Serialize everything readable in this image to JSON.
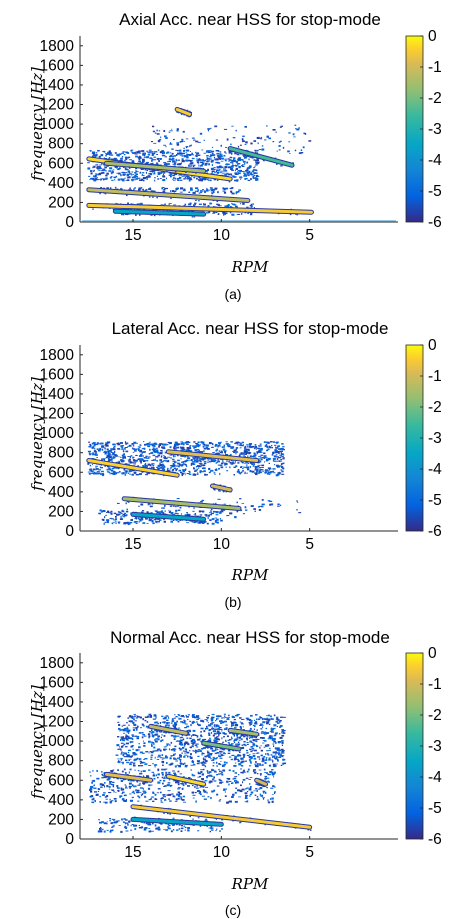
{
  "figure": {
    "panels": [
      {
        "caption": "(a)",
        "chart_data": {
          "type": "heatmap",
          "title": "Axial Acc. near HSS for stop-mode",
          "xlabel": "RPM",
          "ylabel": "frequency [Hz]",
          "x_reversed": true,
          "xlim": [
            18,
            0
          ],
          "ylim": [
            0,
            1900
          ],
          "xticks": [
            15,
            10,
            5
          ],
          "yticks": [
            0,
            200,
            400,
            600,
            800,
            1000,
            1200,
            1400,
            1600,
            1800
          ],
          "colorbar": {
            "ticks": [
              0,
              -1,
              -2,
              -3,
              -4,
              -5,
              -6
            ],
            "range": [
              -6,
              0
            ],
            "colormap": "parula"
          },
          "background_hz": [
            1,
            2
          ],
          "features": [
            {
              "kind": "band",
              "from": [
                17.5,
                170
              ],
              "to": [
                4.9,
                100
              ],
              "level": -0.5
            },
            {
              "kind": "band",
              "from": [
                17.5,
                330
              ],
              "to": [
                8.5,
                220
              ],
              "level": -1.2
            },
            {
              "kind": "band",
              "from": [
                17.5,
                645
              ],
              "to": [
                9.5,
                440
              ],
              "level": -0.3
            },
            {
              "kind": "band",
              "from": [
                16.5,
                600
              ],
              "to": [
                11,
                520
              ],
              "level": -1.5
            },
            {
              "kind": "band",
              "from": [
                12.5,
                1150
              ],
              "to": [
                11.8,
                1100
              ],
              "level": -0.5
            },
            {
              "kind": "band",
              "from": [
                9.5,
                750
              ],
              "to": [
                6,
                580
              ],
              "level": -2.5
            },
            {
              "kind": "band",
              "from": [
                16,
                110
              ],
              "to": [
                11,
                80
              ],
              "level": -3.5
            },
            {
              "kind": "cloud",
              "x": [
                8,
                17.6
              ],
              "y": [
                430,
                740
              ],
              "count": 900,
              "level": -5.5
            },
            {
              "kind": "cloud",
              "x": [
                8,
                16
              ],
              "y": [
                80,
                200
              ],
              "count": 200,
              "level": -5.5
            },
            {
              "kind": "cloud",
              "x": [
                5,
                14
              ],
              "y": [
                700,
                1000
              ],
              "count": 120,
              "level": -5.6
            },
            {
              "kind": "cloud",
              "x": [
                9,
                17
              ],
              "y": [
                300,
                360
              ],
              "count": 120,
              "level": -5.6
            }
          ]
        }
      },
      {
        "caption": "(b)",
        "chart_data": {
          "type": "heatmap",
          "title": "Lateral Acc. near HSS for stop-mode",
          "xlabel": "RPM",
          "ylabel": "frequency [Hz]",
          "x_reversed": true,
          "xlim": [
            18,
            0
          ],
          "ylim": [
            0,
            1900
          ],
          "xticks": [
            15,
            10,
            5
          ],
          "yticks": [
            0,
            200,
            400,
            600,
            800,
            1000,
            1200,
            1400,
            1600,
            1800
          ],
          "colorbar": {
            "ticks": [
              0,
              -1,
              -2,
              -3,
              -4,
              -5,
              -6
            ],
            "range": [
              -6,
              0
            ],
            "colormap": "parula"
          },
          "background_hz": [],
          "features": [
            {
              "kind": "band",
              "from": [
                17.5,
                720
              ],
              "to": [
                12.5,
                570
              ],
              "level": -0.4
            },
            {
              "kind": "band",
              "from": [
                13,
                810
              ],
              "to": [
                8,
                720
              ],
              "level": -0.8
            },
            {
              "kind": "band",
              "from": [
                15.5,
                330
              ],
              "to": [
                9,
                230
              ],
              "level": -1.5
            },
            {
              "kind": "band",
              "from": [
                10.5,
                460
              ],
              "to": [
                9.5,
                420
              ],
              "level": -1.0
            },
            {
              "kind": "band",
              "from": [
                15,
                170
              ],
              "to": [
                11,
                120
              ],
              "level": -3.5
            },
            {
              "kind": "cloud",
              "x": [
                6.5,
                17.6
              ],
              "y": [
                580,
                920
              ],
              "count": 1100,
              "level": -5.5
            },
            {
              "kind": "cloud",
              "x": [
                10,
                17
              ],
              "y": [
                80,
                220
              ],
              "count": 220,
              "level": -5.5
            },
            {
              "kind": "cloud",
              "x": [
                5.5,
                16
              ],
              "y": [
                120,
                340
              ],
              "count": 90,
              "level": -5.6
            }
          ]
        }
      },
      {
        "caption": "(c)",
        "chart_data": {
          "type": "heatmap",
          "title": "Normal Acc. near HSS for stop-mode",
          "xlabel": "RPM",
          "ylabel": "frequency [Hz]",
          "x_reversed": true,
          "xlim": [
            18,
            0
          ],
          "ylim": [
            0,
            1900
          ],
          "xticks": [
            15,
            10,
            5
          ],
          "yticks": [
            0,
            200,
            400,
            600,
            800,
            1000,
            1200,
            1400,
            1600,
            1800
          ],
          "colorbar": {
            "ticks": [
              0,
              -1,
              -2,
              -3,
              -4,
              -5,
              -6
            ],
            "range": [
              -6,
              0
            ],
            "colormap": "parula"
          },
          "background_hz": [],
          "features": [
            {
              "kind": "band",
              "from": [
                15,
                330
              ],
              "to": [
                5,
                120
              ],
              "level": -0.5
            },
            {
              "kind": "band",
              "from": [
                13,
                640
              ],
              "to": [
                11,
                560
              ],
              "level": -0.3
            },
            {
              "kind": "band",
              "from": [
                16.5,
                660
              ],
              "to": [
                14,
                600
              ],
              "level": -0.8
            },
            {
              "kind": "band",
              "from": [
                14,
                1150
              ],
              "to": [
                12,
                1080
              ],
              "level": -1.2
            },
            {
              "kind": "band",
              "from": [
                9.5,
                1110
              ],
              "to": [
                8,
                1070
              ],
              "level": -1.5
            },
            {
              "kind": "band",
              "from": [
                11,
                980
              ],
              "to": [
                9,
                920
              ],
              "level": -2.0
            },
            {
              "kind": "band",
              "from": [
                15,
                200
              ],
              "to": [
                10,
                150
              ],
              "level": -3.5
            },
            {
              "kind": "band",
              "from": [
                8,
                600
              ],
              "to": [
                7.5,
                560
              ],
              "level": -1.0
            },
            {
              "kind": "cloud",
              "x": [
                6.5,
                16
              ],
              "y": [
                750,
                1280
              ],
              "count": 1100,
              "level": -5.5
            },
            {
              "kind": "cloud",
              "x": [
                7,
                17.5
              ],
              "y": [
                380,
                720
              ],
              "count": 500,
              "level": -5.5
            },
            {
              "kind": "cloud",
              "x": [
                10,
                17
              ],
              "y": [
                80,
                220
              ],
              "count": 160,
              "level": -5.5
            }
          ]
        }
      }
    ]
  }
}
